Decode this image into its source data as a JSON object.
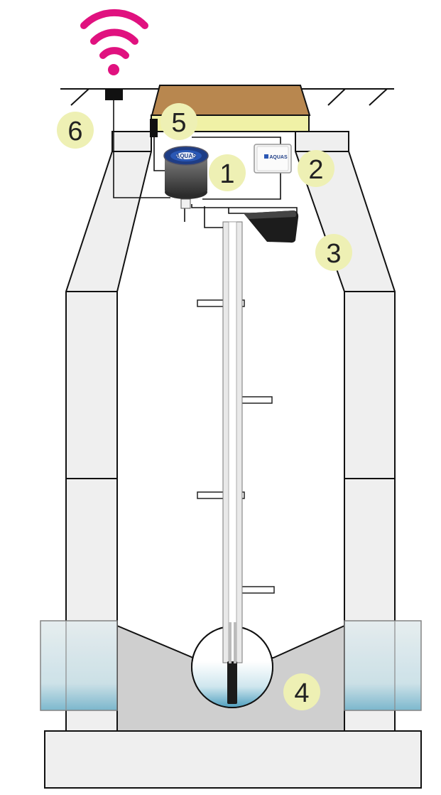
{
  "colors": {
    "wifi": "#e0117f",
    "badge_fill": "#eef0b4",
    "concrete": "#efefef",
    "outline": "#111111",
    "lid_wood": "#b8874f",
    "lid_frame": "#f1f2a8",
    "water_top": "#e6f2f5",
    "water_bottom": "#5aa6c2",
    "sump": "#d0d0d0"
  },
  "icons": {
    "wifi": "wifi-icon",
    "aquas_logo": "aquas-logo"
  },
  "labels": {
    "badge_1": "1",
    "badge_2": "2",
    "badge_3": "3",
    "badge_4": "4",
    "badge_5": "5",
    "badge_6": "6"
  },
  "logo_text": "AQUAS"
}
